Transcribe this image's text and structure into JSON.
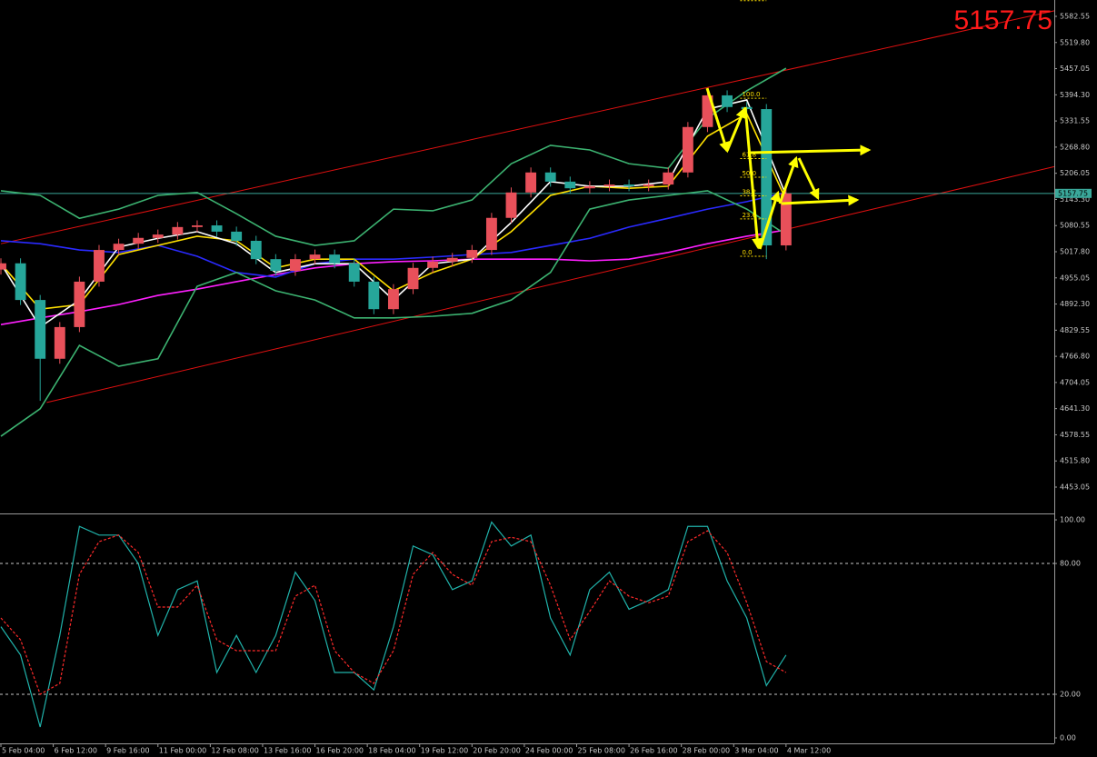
{
  "chart_data": [
    {
      "type": "candlestick",
      "x": [
        0,
        3,
        6,
        9,
        12,
        15,
        18,
        21,
        24,
        27,
        30,
        33,
        36,
        39,
        42,
        45,
        48,
        51,
        54,
        57,
        60,
        63,
        66,
        69,
        72,
        75,
        78,
        81,
        84,
        87,
        90,
        93,
        96,
        99,
        102,
        105,
        108,
        111,
        114,
        117,
        120
      ],
      "open": [
        4975,
        4990,
        4902,
        4761,
        4837,
        4946,
        5022,
        5037,
        5051,
        5059,
        5077,
        5081,
        5066,
        5044,
        5000,
        4972,
        5000,
        5011,
        4990,
        4946,
        4880,
        4928,
        4979,
        4994,
        5003,
        5022,
        5099,
        5160,
        5208,
        5186,
        5170,
        5175,
        5179,
        5175,
        5179,
        5208,
        5317,
        5393,
        5365,
        5360,
        5033
      ],
      "high": [
        5002,
        5002,
        4914,
        4849,
        4958,
        5034,
        5049,
        5063,
        5071,
        5089,
        5093,
        5093,
        5078,
        5056,
        5012,
        5012,
        5023,
        5023,
        5002,
        4958,
        4940,
        4991,
        5006,
        5015,
        5034,
        5111,
        5172,
        5220,
        5220,
        5198,
        5187,
        5191,
        5191,
        5191,
        5220,
        5329,
        5410,
        5405,
        5377,
        5372,
        5170
      ],
      "low": [
        4963,
        4890,
        4660,
        4749,
        4825,
        4934,
        5010,
        5025,
        5039,
        5047,
        5065,
        5054,
        5032,
        4988,
        4960,
        4960,
        4988,
        4978,
        4934,
        4868,
        4868,
        4916,
        4967,
        4982,
        4991,
        5010,
        5087,
        5148,
        5174,
        5158,
        5158,
        5163,
        5163,
        5163,
        5167,
        5196,
        5305,
        5353,
        5348,
        5000,
        5021
      ],
      "close": [
        4990,
        4902,
        4761,
        4837,
        4946,
        5022,
        5037,
        5051,
        5059,
        5077,
        5081,
        5066,
        5044,
        5000,
        4972,
        5000,
        5011,
        4990,
        4946,
        4880,
        4928,
        4979,
        4994,
        5003,
        5022,
        5099,
        5160,
        5208,
        5186,
        5170,
        5175,
        5179,
        5175,
        5179,
        5208,
        5317,
        5393,
        5365,
        5360,
        5033,
        5157.75
      ],
      "up_color": "#e8505a",
      "down_color": "#26a69a",
      "indicators": {
        "x": [
          0,
          6,
          12,
          18,
          24,
          30,
          36,
          42,
          48,
          54,
          60,
          66,
          72,
          78,
          84,
          90,
          96,
          102,
          108,
          114,
          120
        ],
        "series": [
          {
            "color": "#ff20ff",
            "values": [
              4843,
              4859,
              4874,
              4891,
              4913,
              4928,
              4946,
              4963,
              4979,
              4989,
              4994,
              4996,
              5000,
              5000,
              5000,
              4996,
              5000,
              5016,
              5037,
              5055,
              5070
            ]
          },
          {
            "color": "#2a2aff",
            "values": [
              5044,
              5037,
              5022,
              5016,
              5033,
              5007,
              4968,
              4957,
              4989,
              5000,
              5000,
              5005,
              5011,
              5016,
              5033,
              5050,
              5077,
              5098,
              5120,
              5138,
              5160
            ]
          },
          {
            "color": "#3cb371",
            "values": [
              5164,
              5153,
              5098,
              5120,
              5153,
              5160,
              5109,
              5055,
              5033,
              5044,
              5120,
              5116,
              5142,
              5229,
              5273,
              5262,
              5229,
              5218,
              5338,
              5404,
              5458
            ]
          },
          {
            "color": "#3cb371",
            "values": [
              4575,
              4641,
              4793,
              4743,
              4761,
              4935,
              4968,
              4924,
              4902,
              4859,
              4859,
              4863,
              4870,
              4902,
              4968,
              5120,
              5142,
              5153,
              5164,
              5120,
              5059
            ]
          },
          {
            "color": "#ffe000",
            "values": [
              4989,
              4880,
              4891,
              5011,
              5033,
              5055,
              5044,
              4979,
              5000,
              5000,
              4924,
              4968,
              5000,
              5066,
              5153,
              5175,
              5170,
              5175,
              5295,
              5349,
              5142
            ]
          },
          {
            "color": "#ffffff",
            "values": [
              4989,
              4837,
              4902,
              5029,
              5050,
              5066,
              5037,
              4968,
              4989,
              4989,
              4902,
              4989,
              5000,
              5088,
              5186,
              5175,
              5175,
              5186,
              5360,
              5382,
              5153
            ]
          }
        ]
      },
      "trendlines": [
        {
          "color": "#e01010",
          "x": [
            0,
            161
          ],
          "y": [
            5037,
            5596
          ]
        },
        {
          "color": "#e01010",
          "x": [
            7,
            161
          ],
          "y": [
            4656,
            5222
          ]
        }
      ],
      "fibonacci": {
        "x": [
          113,
          117
        ],
        "high": 5386,
        "low": 5007,
        "color": "#ffe000",
        "levels": [
          161.8,
          {
            "value": 100,
            "label": "100.0"
          },
          61.8,
          {
            "value": 50,
            "label": "50.0"
          },
          38.2,
          23.6,
          {
            "value": 0,
            "label": "0.0"
          }
        ]
      },
      "current_price": 5157.75,
      "xlim": [
        0,
        161
      ],
      "ylim": [
        4389.8,
        5621.8
      ],
      "yticks": [
        5582.55,
        {
          "value": 5519.8,
          "label": "5519.80"
        },
        5457.05,
        {
          "value": 5394.3,
          "label": "5394.30"
        },
        5331.55,
        {
          "value": 5268.8,
          "label": "5268.80"
        },
        5206.05,
        {
          "value": 5143.3,
          "label": "5143.30"
        },
        5080.55,
        {
          "value": 5017.8,
          "label": "5017.80"
        },
        4955.05,
        {
          "value": 4892.3,
          "label": "4892.30"
        },
        4829.55,
        {
          "value": 4766.8,
          "label": "4766.80"
        },
        4704.05,
        {
          "value": 4641.3,
          "label": "4641.30"
        },
        4578.55,
        {
          "value": 4515.8,
          "label": "4515.80"
        },
        4453.05
      ]
    },
    {
      "type": "line",
      "x": [
        0,
        3,
        6,
        9,
        12,
        15,
        18,
        21,
        24,
        27,
        30,
        33,
        36,
        39,
        42,
        45,
        48,
        51,
        54,
        57,
        60,
        63,
        66,
        69,
        72,
        75,
        78,
        81,
        84,
        87,
        90,
        93,
        96,
        99,
        102,
        105,
        108,
        111,
        114,
        117,
        120
      ],
      "series": [
        {
          "color": "#20b2aa",
          "dashed": false,
          "values": [
            51,
            38,
            5,
            47,
            97,
            93,
            93,
            80,
            47,
            68,
            72,
            30,
            47,
            30,
            47,
            76,
            63,
            30,
            30,
            22,
            51,
            88,
            84,
            68,
            72,
            99,
            88,
            93,
            55,
            38,
            68,
            76,
            59,
            63,
            68,
            97,
            97,
            72,
            55,
            24,
            38
          ]
        },
        {
          "color": "#ff2a2a",
          "dashed": true,
          "values": [
            55,
            45,
            20,
            25,
            75,
            90,
            93,
            85,
            60,
            60,
            70,
            45,
            40,
            40,
            40,
            65,
            70,
            40,
            30,
            25,
            40,
            75,
            85,
            75,
            70,
            90,
            92,
            90,
            70,
            45,
            58,
            72,
            65,
            62,
            65,
            90,
            95,
            85,
            62,
            35,
            30
          ]
        }
      ],
      "xlim": [
        0,
        161
      ],
      "ylim": [
        -2.5,
        102.1
      ],
      "yticks": [
        {
          "value": 100,
          "label": "100.00"
        },
        {
          "value": 80,
          "label": "80.00"
        },
        {
          "value": 20,
          "label": "20.00"
        },
        {
          "value": 0,
          "label": "0.00"
        }
      ],
      "xticks": [
        {
          "value": 0,
          "label": "5 Feb 04:00"
        },
        {
          "value": 8,
          "label": "6 Feb 12:00"
        },
        {
          "value": 16,
          "label": "9 Feb 16:00"
        },
        {
          "value": 24,
          "label": "11 Feb 00:00"
        },
        {
          "value": 32,
          "label": "12 Feb 08:00"
        },
        {
          "value": 40,
          "label": "13 Feb 16:00"
        },
        {
          "value": 48,
          "label": "16 Feb 20:00"
        },
        {
          "value": 56,
          "label": "18 Feb 04:00"
        },
        {
          "value": 64,
          "label": "19 Feb 12:00"
        },
        {
          "value": 72,
          "label": "20 Feb 20:00"
        },
        {
          "value": 80,
          "label": "24 Feb 00:00"
        },
        {
          "value": 88,
          "label": "25 Feb 08:00"
        },
        {
          "value": 96,
          "label": "26 Feb 16:00"
        },
        {
          "value": 104,
          "label": "28 Feb 00:00"
        },
        {
          "value": 112,
          "label": "3 Mar 04:00"
        },
        {
          "value": 120,
          "label": "4 Mar 12:00"
        }
      ]
    }
  ]
}
